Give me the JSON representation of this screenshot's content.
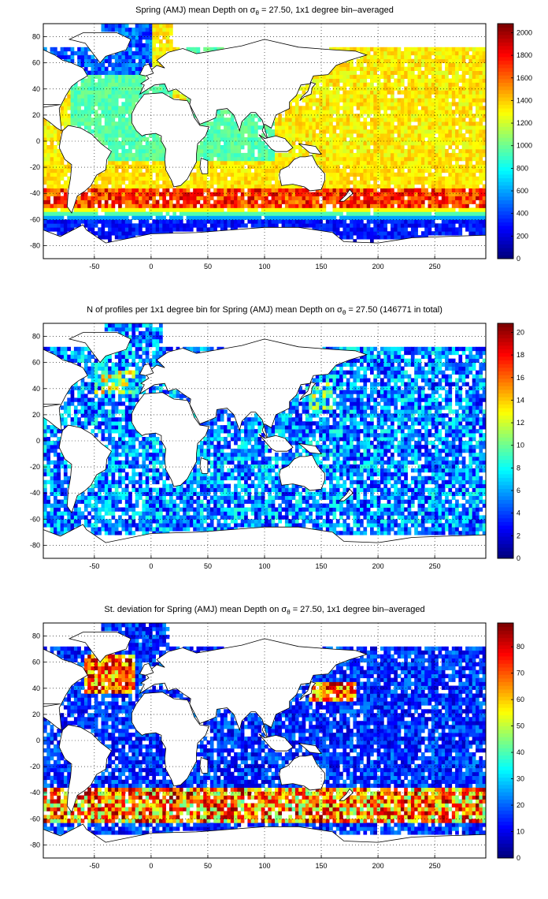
{
  "chart_data": [
    {
      "type": "heatmap",
      "title_main": "Spring (AMJ) mean Depth on ",
      "title_symbol": "σ",
      "title_sub": "θ",
      "title_rest": " = 27.50, 1x1 degree bin–averaged",
      "xticks": [
        "-50",
        "0",
        "50",
        "100",
        "150",
        "200",
        "250"
      ],
      "yticks": [
        "80",
        "60",
        "40",
        "20",
        "0",
        "-20",
        "-40",
        "-60",
        "-80"
      ],
      "xlim": [
        -95,
        295
      ],
      "ylim": [
        -90,
        90
      ],
      "colorbar": {
        "ticks": [
          "0",
          "200",
          "400",
          "600",
          "800",
          "1000",
          "1200",
          "1400",
          "1600",
          "1800",
          "2000"
        ],
        "range": [
          0,
          2080
        ]
      },
      "grid": true
    },
    {
      "type": "heatmap",
      "title_main": "N of profiles per 1x1 degree bin for Spring (AMJ) mean Depth on ",
      "title_symbol": "σ",
      "title_sub": "θ",
      "title_rest": " = 27.50 (146771 in total)",
      "xticks": [
        "-50",
        "0",
        "50",
        "100",
        "150",
        "200",
        "250"
      ],
      "yticks": [
        "80",
        "60",
        "40",
        "20",
        "0",
        "-20",
        "-40",
        "-60",
        "-80"
      ],
      "xlim": [
        -95,
        295
      ],
      "ylim": [
        -90,
        90
      ],
      "colorbar": {
        "ticks": [
          "0",
          "2",
          "4",
          "6",
          "8",
          "10",
          "12",
          "14",
          "16",
          "18",
          "20"
        ],
        "range": [
          0,
          20.8
        ]
      },
      "grid": true
    },
    {
      "type": "heatmap",
      "title_main": "St. deviation for Spring (AMJ) mean Depth on ",
      "title_symbol": "σ",
      "title_sub": "θ",
      "title_rest": " = 27.50, 1x1 degree bin–averaged",
      "xticks": [
        "-50",
        "0",
        "50",
        "100",
        "150",
        "200",
        "250"
      ],
      "yticks": [
        "80",
        "60",
        "40",
        "20",
        "0",
        "-20",
        "-40",
        "-60",
        "-80"
      ],
      "xlim": [
        -95,
        295
      ],
      "ylim": [
        -90,
        90
      ],
      "colorbar": {
        "ticks": [
          "0",
          "10",
          "20",
          "30",
          "40",
          "50",
          "60",
          "70",
          "80"
        ],
        "range": [
          0,
          89
        ]
      },
      "grid": true
    }
  ]
}
